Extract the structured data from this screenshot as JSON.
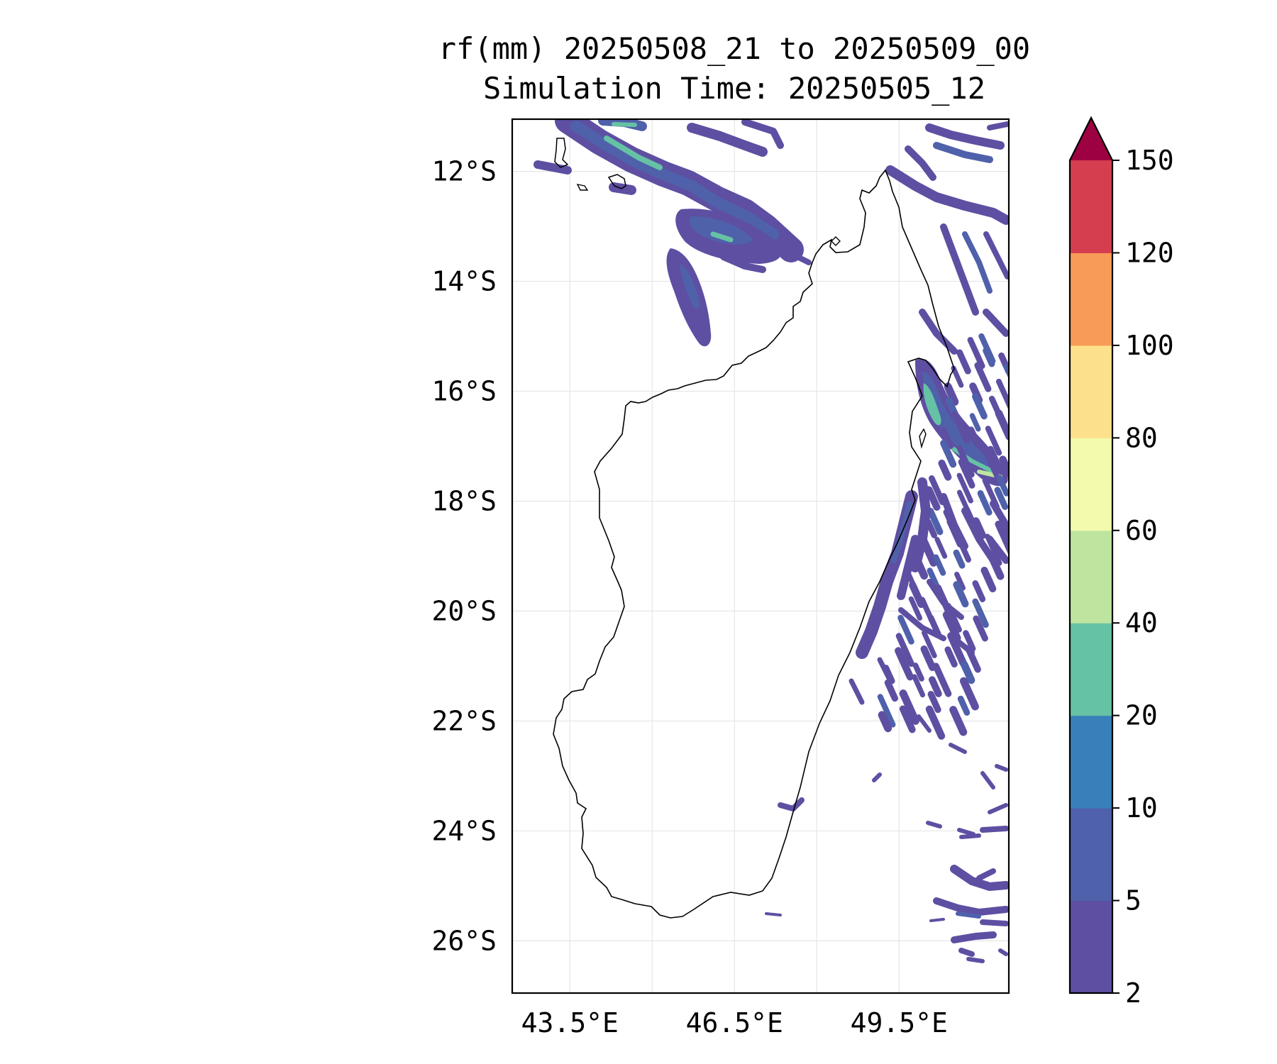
{
  "figure": {
    "title_line1": "rf(mm) 20250508_21 to 20250509_00",
    "title_line2": "Simulation Time: 20250505_12"
  },
  "map": {
    "lat_ticks": [
      "12°S",
      "14°S",
      "16°S",
      "18°S",
      "20°S",
      "22°S",
      "24°S",
      "26°S"
    ],
    "lon_ticks": [
      "43.5°E",
      "46.5°E",
      "49.5°E"
    ],
    "lat_values": [
      -12,
      -14,
      -16,
      -18,
      -20,
      -22,
      -24,
      -26
    ],
    "lon_values": [
      43.5,
      46.5,
      49.5
    ],
    "extent": {
      "lon_min": 42.45,
      "lon_max": 51.5,
      "lat_min": -26.95,
      "lat_max": -11.05
    },
    "gridlines": true,
    "region": "Madagascar"
  },
  "colorbar": {
    "levels": [
      "2",
      "5",
      "10",
      "20",
      "40",
      "60",
      "80",
      "100",
      "120",
      "150"
    ],
    "colors": [
      "#5e4fa2",
      "#4f61aa",
      "#3880b9",
      "#66c2a5",
      "#bee5a0",
      "#f3faad",
      "#fde08b",
      "#f99b58",
      "#d53e4f"
    ],
    "extend_color": "#9e0142",
    "extend": "max",
    "orientation": "vertical"
  }
}
